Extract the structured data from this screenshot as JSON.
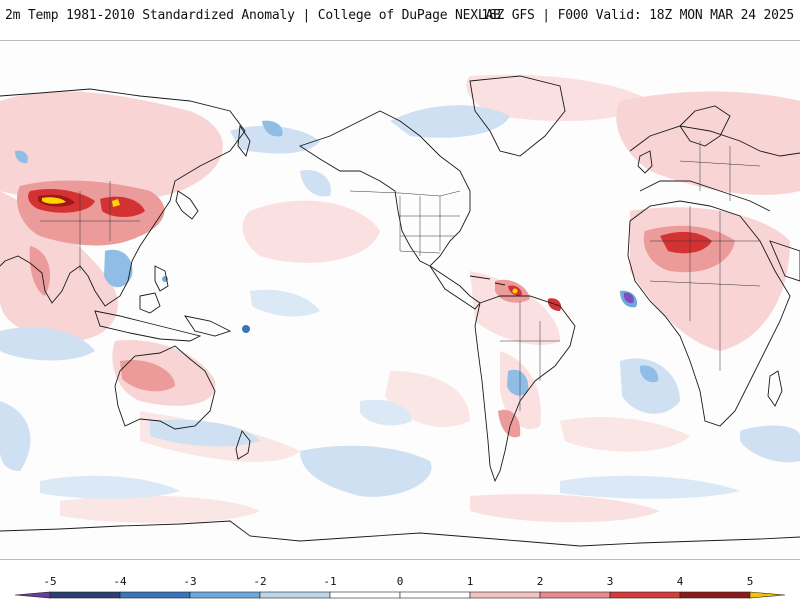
{
  "header": {
    "title": "2m Temp 1981-2010 Standardized Anomaly | College of DuPage NEXLAB",
    "run_info": "18Z GFS | F000 Valid: 18Z MON MAR 24 2025"
  },
  "map": {
    "projection": "equirectangular, Pacific-centered",
    "fill_field": "2m temperature standardized anomaly"
  },
  "colorbar": {
    "ticks": [
      "-5",
      "-4",
      "-3",
      "-2",
      "-1",
      "0",
      "1",
      "2",
      "3",
      "4",
      "5"
    ],
    "bins": [
      {
        "from": -5.5,
        "to": -5,
        "color": "#6a3d9a"
      },
      {
        "from": -5,
        "to": -4,
        "color": "#2c3e73"
      },
      {
        "from": -4,
        "to": -3,
        "color": "#3d73b8"
      },
      {
        "from": -3,
        "to": -2,
        "color": "#6fa8dc"
      },
      {
        "from": -2,
        "to": -1,
        "color": "#bcd6ee"
      },
      {
        "from": -1,
        "to": 0,
        "color": "#ffffff"
      },
      {
        "from": 0,
        "to": 1,
        "color": "#ffffff"
      },
      {
        "from": 1,
        "to": 2,
        "color": "#f4c2c2"
      },
      {
        "from": 2,
        "to": 3,
        "color": "#e88a8a"
      },
      {
        "from": 3,
        "to": 4,
        "color": "#d43b3b"
      },
      {
        "from": 4,
        "to": 5,
        "color": "#8b1a1a"
      },
      {
        "from": 5,
        "to": 5.5,
        "color": "#f2c200"
      }
    ]
  },
  "colors": {
    "coast": "#1a1a1a",
    "frame": "#bdbdbd",
    "cold_light": "#cfe0f2",
    "cold_mid": "#8fbde6",
    "warm_light": "#f8d4d4",
    "warm_mid": "#ec9b9b",
    "warm_strong": "#d33232",
    "warm_extreme": "#a01515",
    "yellow": "#ffd400",
    "purple": "#7a4fbf"
  }
}
